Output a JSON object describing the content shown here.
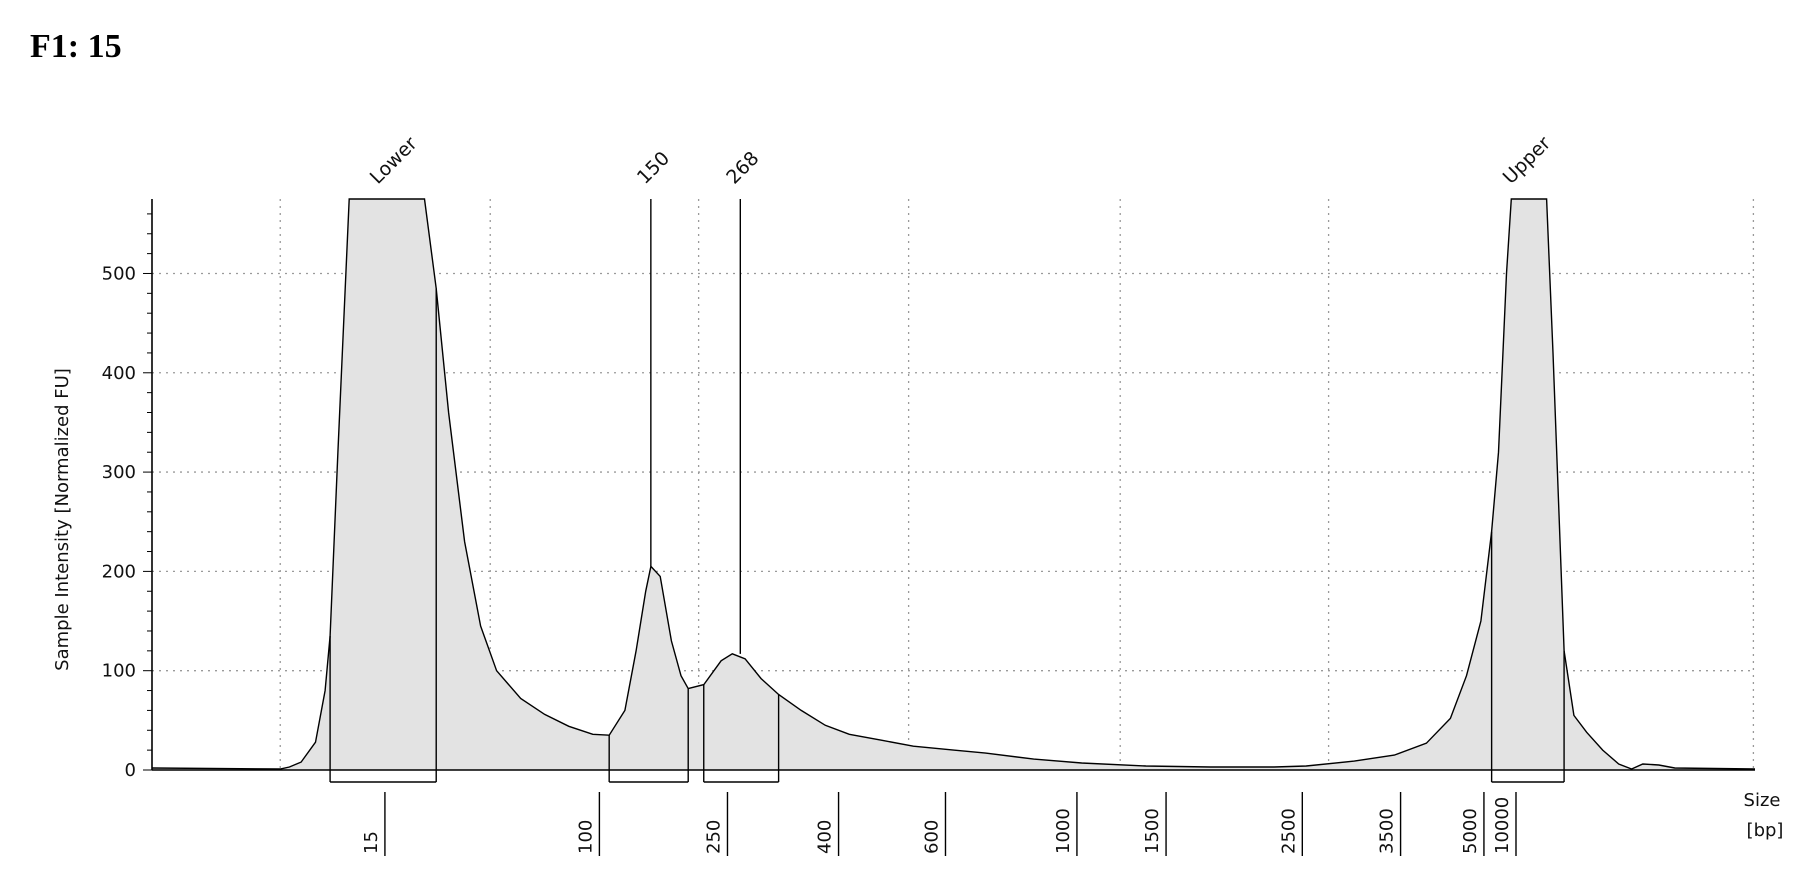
{
  "title": "F1: 15",
  "chart_data": {
    "type": "area",
    "title": "F1: 15",
    "ylabel": "Sample Intensity [Normalized FU]",
    "xlabel_lines": [
      "Size",
      "[bp]"
    ],
    "ylim": [
      0,
      575
    ],
    "yticks": [
      0,
      100,
      200,
      300,
      400,
      500
    ],
    "grid": true,
    "colors": {
      "fill": "#e3e3e3",
      "stroke": "#000000",
      "grid": "#9a9a9a"
    },
    "ladder": [
      {
        "bp": 15,
        "label": "15",
        "pos": 0.1453
      },
      {
        "bp": 100,
        "label": "100",
        "pos": 0.2791
      },
      {
        "bp": 250,
        "label": "250",
        "pos": 0.359
      },
      {
        "bp": 400,
        "label": "400",
        "pos": 0.4283
      },
      {
        "bp": 600,
        "label": "600",
        "pos": 0.495
      },
      {
        "bp": 1000,
        "label": "1000",
        "pos": 0.577
      },
      {
        "bp": 1500,
        "label": "1500",
        "pos": 0.6326
      },
      {
        "bp": 2500,
        "label": "2500",
        "pos": 0.7176
      },
      {
        "bp": 3500,
        "label": "3500",
        "pos": 0.7789
      },
      {
        "bp": 5000,
        "label": "5000",
        "pos": 0.8309
      },
      {
        "bp": 10000,
        "label": "10000",
        "pos": 0.8509
      }
    ],
    "peaks": [
      {
        "label": "Lower",
        "pos": 0.1446,
        "value": 575,
        "region": [
          0.1111,
          0.1773
        ]
      },
      {
        "label": "150",
        "pos": 0.3112,
        "value": 205,
        "region": [
          0.2852,
          0.3345
        ]
      },
      {
        "label": "268",
        "pos": 0.367,
        "value": 117,
        "region": [
          0.3442,
          0.3909
        ]
      },
      {
        "label": "Upper",
        "pos": 0.8514,
        "value": 575,
        "region": [
          0.8357,
          0.8809
        ]
      }
    ],
    "trace": [
      [
        0.0,
        2
      ],
      [
        0.08,
        1
      ],
      [
        0.0857,
        3
      ],
      [
        0.093,
        8
      ],
      [
        0.102,
        28
      ],
      [
        0.108,
        80
      ],
      [
        0.1111,
        135
      ],
      [
        0.116,
        320
      ],
      [
        0.123,
        575
      ],
      [
        0.17,
        575
      ],
      [
        0.1773,
        485
      ],
      [
        0.185,
        360
      ],
      [
        0.195,
        230
      ],
      [
        0.205,
        145
      ],
      [
        0.215,
        100
      ],
      [
        0.23,
        72
      ],
      [
        0.245,
        56
      ],
      [
        0.26,
        44
      ],
      [
        0.275,
        36
      ],
      [
        0.2852,
        35
      ],
      [
        0.295,
        60
      ],
      [
        0.302,
        120
      ],
      [
        0.308,
        180
      ],
      [
        0.3112,
        205
      ],
      [
        0.317,
        195
      ],
      [
        0.324,
        130
      ],
      [
        0.33,
        95
      ],
      [
        0.3345,
        82
      ],
      [
        0.3442,
        86
      ],
      [
        0.355,
        110
      ],
      [
        0.362,
        117
      ],
      [
        0.37,
        112
      ],
      [
        0.38,
        92
      ],
      [
        0.3909,
        76
      ],
      [
        0.405,
        60
      ],
      [
        0.42,
        45
      ],
      [
        0.435,
        36
      ],
      [
        0.455,
        30
      ],
      [
        0.475,
        24
      ],
      [
        0.5,
        20
      ],
      [
        0.52,
        17
      ],
      [
        0.55,
        11
      ],
      [
        0.58,
        7
      ],
      [
        0.62,
        4
      ],
      [
        0.66,
        3
      ],
      [
        0.7,
        3
      ],
      [
        0.72,
        4
      ],
      [
        0.75,
        9
      ],
      [
        0.775,
        15
      ],
      [
        0.795,
        27
      ],
      [
        0.81,
        52
      ],
      [
        0.82,
        95
      ],
      [
        0.829,
        150
      ],
      [
        0.8357,
        240
      ],
      [
        0.84,
        320
      ],
      [
        0.845,
        500
      ],
      [
        0.848,
        575
      ],
      [
        0.87,
        575
      ],
      [
        0.874,
        420
      ],
      [
        0.8809,
        120
      ],
      [
        0.887,
        55
      ],
      [
        0.895,
        38
      ],
      [
        0.905,
        20
      ],
      [
        0.915,
        6
      ],
      [
        0.923,
        1
      ],
      [
        0.93,
        6
      ],
      [
        0.94,
        5
      ],
      [
        0.95,
        2
      ],
      [
        1.0,
        1
      ]
    ],
    "axis_scale": "ladder-calibrated (non-linear bp)"
  }
}
